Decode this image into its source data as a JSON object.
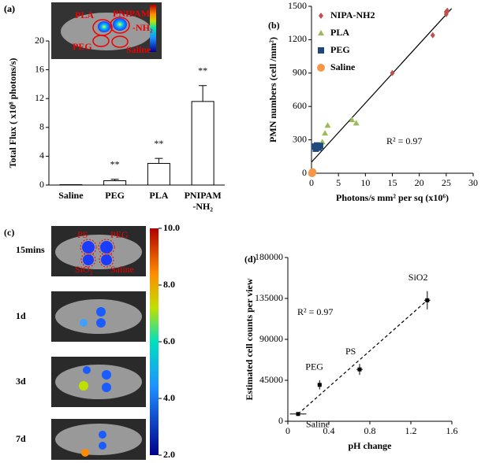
{
  "chart_data": [
    {
      "type": "bar",
      "label": "(a)",
      "categories": [
        "Saline",
        "PEG",
        "PLA",
        "PNIPAM -NH₂"
      ],
      "values": [
        0.05,
        0.6,
        3.0,
        11.6
      ],
      "errors": [
        0,
        0.2,
        0.7,
        2.2
      ],
      "value_annotations": [
        null,
        "**",
        "**",
        "**"
      ],
      "color": "#ffffff",
      "ylabel": "Total Flux ( x10⁸ photons/s)",
      "ylim": [
        0,
        20
      ],
      "yticks": [
        0,
        4,
        8,
        12,
        16,
        20
      ],
      "inset_labels": [
        "PLA",
        "PNIPAM",
        "-NH₂",
        "PEG",
        "Saline"
      ]
    },
    {
      "type": "scatter",
      "label": "(b)",
      "xlabel": "Photons/s mm² per sq (x10⁶)",
      "ylabel": "PMN numbers (cell /mm²)",
      "xlim": [
        0,
        30
      ],
      "xticks": [
        0,
        5,
        10,
        15,
        20,
        25,
        30
      ],
      "ylim": [
        0,
        1500
      ],
      "yticks": [
        0,
        300,
        600,
        900,
        1200,
        1500
      ],
      "legend": "top-left",
      "annotation": "R² = 0.97",
      "trendline": {
        "x": [
          0,
          26
        ],
        "y": [
          100,
          1480
        ],
        "color": "#000000"
      },
      "series": [
        {
          "name": "NIPA-NH2",
          "color": "#c0504d",
          "marker": "diamond",
          "x": [
            15,
            22.5,
            25,
            25,
            25.2
          ],
          "values": [
            900,
            1240,
            1430,
            1450,
            1460
          ]
        },
        {
          "name": "PLA",
          "color": "#9bbb59",
          "marker": "triangle",
          "x": [
            2,
            2.5,
            3,
            7.5,
            8.3
          ],
          "values": [
            280,
            360,
            430,
            480,
            450
          ]
        },
        {
          "name": "PEG",
          "color": "#1f497d",
          "marker": "square",
          "x": [
            0.5,
            0.8,
            1,
            1.3,
            1.6
          ],
          "values": [
            240,
            220,
            250,
            230,
            245
          ]
        },
        {
          "name": "Saline",
          "color": "#f79646",
          "marker": "circle",
          "x": [
            0.1,
            0.2
          ],
          "values": [
            0,
            10
          ]
        }
      ]
    },
    {
      "type": "errorscatter",
      "label": "(d)",
      "xlabel": "pH change",
      "ylabel": "Estimated cell counts per view",
      "xlim": [
        0,
        1.6
      ],
      "xticks": [
        0,
        0.4,
        0.8,
        1.2,
        1.6
      ],
      "ylim": [
        0,
        180000
      ],
      "yticks": [
        0,
        45000,
        90000,
        135000,
        180000
      ],
      "annotation": "R² = 0.97",
      "color": "#000000",
      "trendline": {
        "x": [
          0.1,
          1.36
        ],
        "y": [
          8000,
          133000
        ],
        "color": "#000000",
        "style": "dashed"
      },
      "point_labels": [
        "Saline",
        "PEG",
        "PS",
        "SiO2"
      ],
      "x": [
        0.1,
        0.31,
        0.7,
        1.36
      ],
      "values": [
        8000,
        40000,
        57000,
        133000
      ],
      "xerr": [
        0.08,
        0.02,
        0.03,
        0.03
      ],
      "yerr": [
        2000,
        5000,
        6000,
        10000
      ]
    }
  ],
  "panel_c": {
    "label": "(c)",
    "row_labels": [
      "15mins",
      "1d",
      "3d",
      "7d"
    ],
    "inset_labels": [
      "PS",
      "PEG",
      "SiO₂",
      "Saline"
    ],
    "colorbar_ticks": [
      {
        "value": 10,
        "label": "10.0"
      },
      {
        "value": 8,
        "label": "8.0"
      },
      {
        "value": 6,
        "label": "6.0"
      },
      {
        "value": 4,
        "label": "4.0"
      },
      {
        "value": 2,
        "label": "2.0"
      }
    ],
    "colorbar_range": [
      2,
      10
    ]
  }
}
